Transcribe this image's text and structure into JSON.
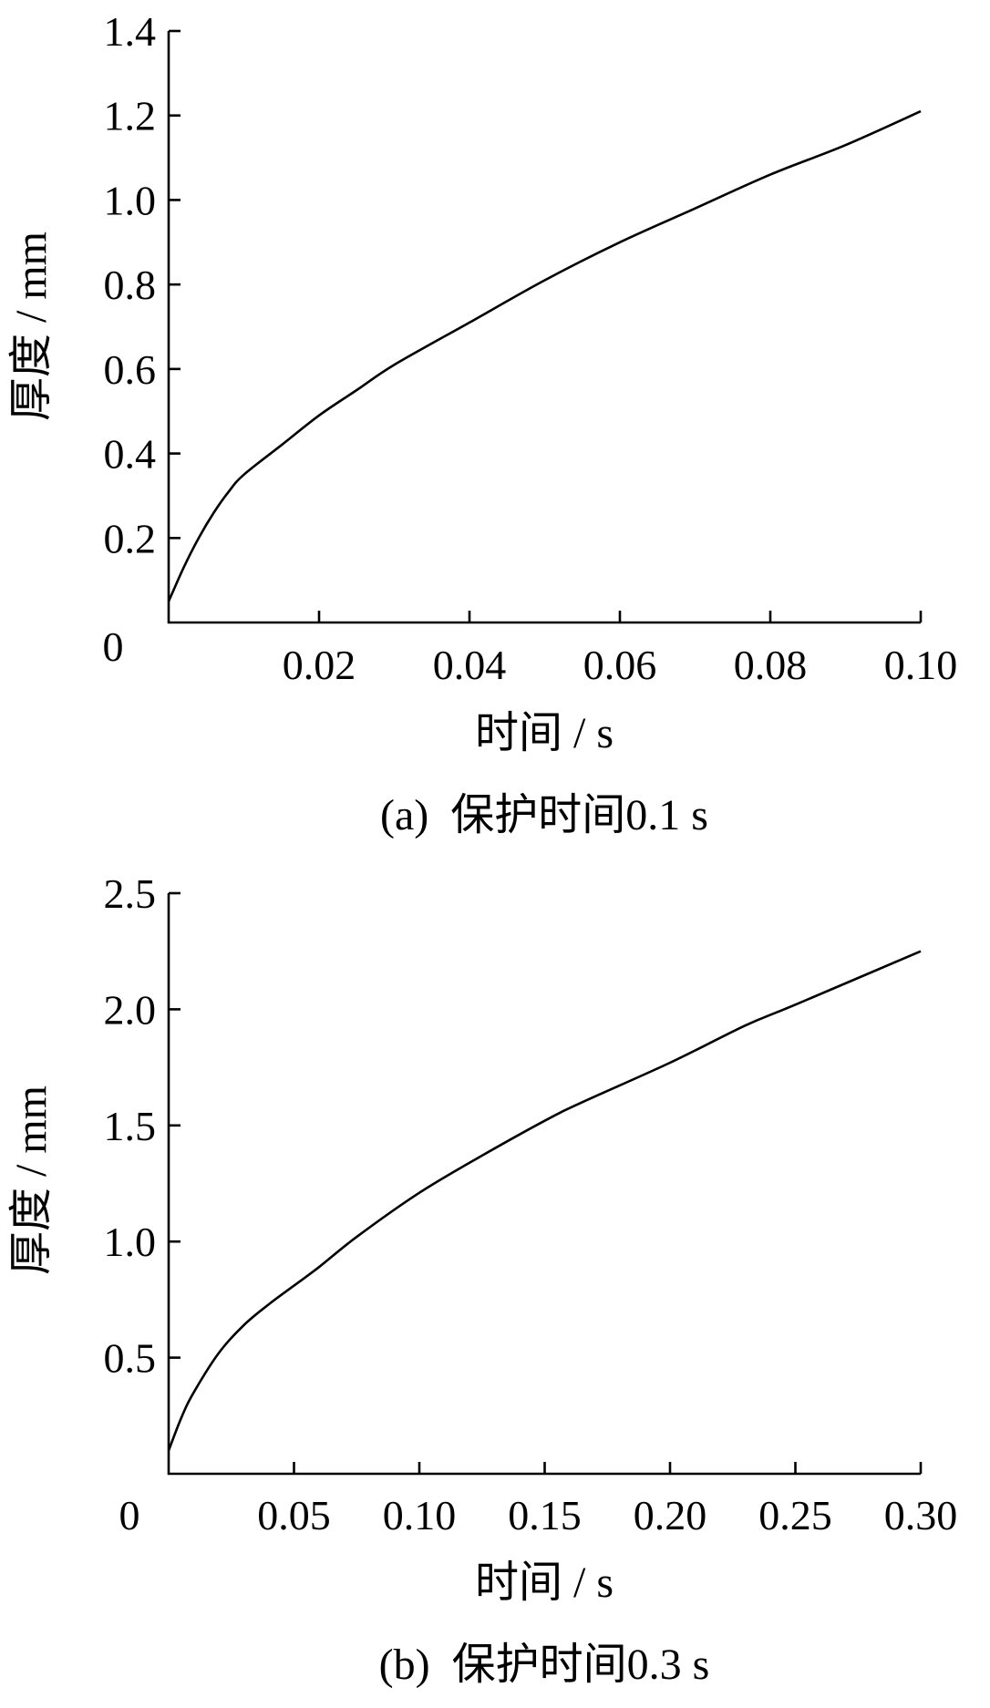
{
  "chart_data": [
    {
      "type": "line",
      "title": "",
      "caption": "(a)  保护时间0.1 s",
      "xlabel": "时间 / s",
      "ylabel": "厚度 / mm",
      "origin_label": "0",
      "xlim": [
        0,
        0.1
      ],
      "ylim": [
        0,
        1.4
      ],
      "x_ticks": [
        0.02,
        0.04,
        0.06,
        0.08,
        0.1
      ],
      "x_tick_labels": [
        "0.02",
        "0.04",
        "0.06",
        "0.08",
        "0.10"
      ],
      "y_ticks": [
        0.2,
        0.4,
        0.6,
        0.8,
        1.0,
        1.2,
        1.4
      ],
      "y_tick_labels": [
        "0.2",
        "0.4",
        "0.6",
        "0.8",
        "1.0",
        "1.2",
        "1.4"
      ],
      "series": [
        {
          "x": [
            0,
            0.002,
            0.004,
            0.006,
            0.008,
            0.01,
            0.015,
            0.02,
            0.025,
            0.03,
            0.04,
            0.05,
            0.06,
            0.07,
            0.08,
            0.09,
            0.1
          ],
          "y": [
            0.05,
            0.13,
            0.2,
            0.26,
            0.31,
            0.35,
            0.42,
            0.49,
            0.55,
            0.61,
            0.71,
            0.81,
            0.9,
            0.98,
            1.06,
            1.13,
            1.21
          ]
        }
      ]
    },
    {
      "type": "line",
      "title": "",
      "caption": "(b)  保护时间0.3 s",
      "xlabel": "时间 / s",
      "ylabel": "厚度 / mm",
      "origin_label": "0",
      "xlim": [
        0,
        0.3
      ],
      "ylim": [
        0,
        2.5
      ],
      "x_ticks": [
        0.05,
        0.1,
        0.15,
        0.2,
        0.25,
        0.3
      ],
      "x_tick_labels": [
        "0.05",
        "0.10",
        "0.15",
        "0.20",
        "0.25",
        "0.30"
      ],
      "y_ticks": [
        0.5,
        1.0,
        1.5,
        2.0,
        2.5
      ],
      "y_tick_labels": [
        "0.5",
        "1.0",
        "1.5",
        "2.0",
        "2.5"
      ],
      "series": [
        {
          "x": [
            0,
            0.005,
            0.01,
            0.02,
            0.03,
            0.04,
            0.05,
            0.06,
            0.075,
            0.1,
            0.125,
            0.15,
            0.165,
            0.2,
            0.23,
            0.25,
            0.3
          ],
          "y": [
            0.1,
            0.24,
            0.35,
            0.52,
            0.64,
            0.73,
            0.81,
            0.89,
            1.02,
            1.21,
            1.37,
            1.52,
            1.6,
            1.77,
            1.93,
            2.02,
            2.25
          ]
        }
      ]
    }
  ]
}
